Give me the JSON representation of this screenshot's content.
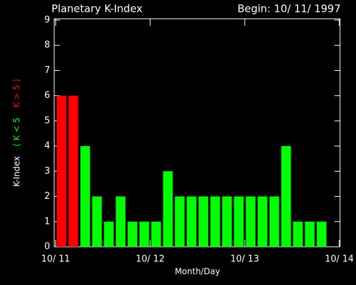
{
  "chart_data": {
    "type": "bar",
    "title": "Planetary K-Index",
    "subtitle": "Begin: 10/ 11/ 1997",
    "x_label": "Month/Day",
    "y_label": [
      "K-Index",
      "( K < 5",
      "K > 5 )"
    ],
    "y_label_colors": [
      "#ffffff",
      "#00ff00",
      "#ff0000"
    ],
    "x": [
      1.5,
      4.5,
      7.5,
      10.5,
      13.5,
      16.5,
      19.5,
      22.5,
      25.5,
      28.5,
      31.5,
      34.5,
      37.5,
      40.5,
      43.5,
      46.5,
      49.5,
      52.5,
      55.5,
      58.5,
      61.5,
      64.5,
      67.5
    ],
    "values": [
      6,
      6,
      4,
      2,
      1,
      2,
      1,
      1,
      1,
      3,
      2,
      2,
      2,
      2,
      2,
      2,
      2,
      2,
      2,
      4,
      1,
      1,
      1
    ],
    "colors": [
      "#ff0000",
      "#ff0000",
      "#00ff00",
      "#00ff00",
      "#00ff00",
      "#00ff00",
      "#00ff00",
      "#00ff00",
      "#00ff00",
      "#00ff00",
      "#00ff00",
      "#00ff00",
      "#00ff00",
      "#00ff00",
      "#00ff00",
      "#00ff00",
      "#00ff00",
      "#00ff00",
      "#00ff00",
      "#00ff00",
      "#00ff00",
      "#00ff00",
      "#00ff00"
    ],
    "xlim": [
      0,
      72
    ],
    "xticks": [
      {
        "value": 0,
        "label": "10/ 11"
      },
      {
        "value": 24,
        "label": "10/ 12"
      },
      {
        "value": 48,
        "label": "10/ 13"
      },
      {
        "value": 72,
        "label": "10/ 14"
      }
    ],
    "ylim": [
      0,
      9
    ],
    "yticks": [
      0,
      1,
      2,
      3,
      4,
      5,
      6,
      7,
      8,
      9
    ]
  }
}
